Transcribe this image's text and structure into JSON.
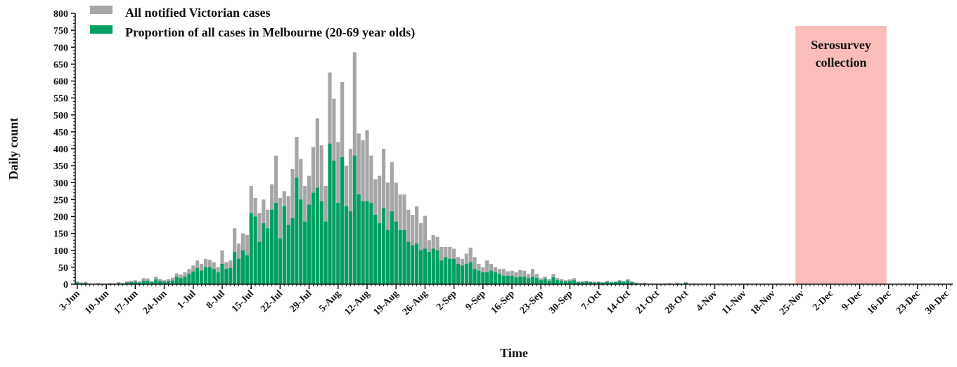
{
  "chart_data": {
    "type": "bar",
    "stacked": "overlay",
    "x_start_label": "3-Jun",
    "xlabel": "Time",
    "ylabel": "Daily count",
    "ylim": [
      0,
      800
    ],
    "yticks": [
      "0",
      "50",
      "100",
      "150",
      "200",
      "250",
      "300",
      "350",
      "400",
      "450",
      "500",
      "550",
      "600",
      "650",
      "700",
      "750",
      "800"
    ],
    "xtick_labels": [
      "3-Jun",
      "10-Jun",
      "17-Jun",
      "24-Jun",
      "1-Jul",
      "8-Jul",
      "15-Jul",
      "22-Jul",
      "29-Jul",
      "5-Aug",
      "12-Aug",
      "19-Aug",
      "26-Aug",
      "2-Sep",
      "9-Sep",
      "16-Sep",
      "23-Sep",
      "30-Sep",
      "7-Oct",
      "14-Oct",
      "21-Oct",
      "28-Oct",
      "4-Nov",
      "11-Nov",
      "18-Nov",
      "25-Nov",
      "2-Dec",
      "9-Dec",
      "16-Dec",
      "23-Dec",
      "30-Dec"
    ],
    "legend": {
      "placement": "top-left",
      "entries": [
        {
          "name": "All notified Victorian cases",
          "color": "#a6a6a8"
        },
        {
          "name": "Proportion of all cases in Melbourne (20-69 year olds)",
          "color": "#00a062"
        }
      ]
    },
    "annotation": {
      "text_lines": [
        "Serosurvey",
        "collection"
      ],
      "from": "24-Nov",
      "to": "16-Dec",
      "color": "#fbbcbc"
    },
    "series": [
      {
        "name": "All notified Victorian cases",
        "color": "#a6a6a8",
        "values": [
          8,
          5,
          7,
          2,
          1,
          3,
          2,
          1,
          3,
          2,
          6,
          4,
          8,
          10,
          12,
          8,
          18,
          17,
          10,
          22,
          15,
          12,
          15,
          19,
          32,
          28,
          35,
          45,
          55,
          70,
          60,
          75,
          72,
          65,
          50,
          100,
          65,
          70,
          165,
          120,
          150,
          145,
          290,
          255,
          210,
          250,
          220,
          295,
          380,
          255,
          275,
          260,
          340,
          435,
          370,
          290,
          320,
          405,
          490,
          410,
          290,
          625,
          548,
          420,
          597,
          350,
          400,
          685,
          445,
          425,
          455,
          380,
          310,
          320,
          400,
          300,
          360,
          300,
          265,
          265,
          220,
          205,
          230,
          180,
          202,
          130,
          145,
          140,
          110,
          110,
          110,
          105,
          80,
          75,
          90,
          108,
          80,
          60,
          50,
          70,
          60,
          50,
          45,
          45,
          38,
          40,
          35,
          42,
          40,
          30,
          45,
          30,
          18,
          22,
          15,
          30,
          18,
          15,
          12,
          14,
          18,
          8,
          8,
          10,
          8,
          7,
          8,
          6,
          10,
          7,
          8,
          12,
          10,
          15,
          8,
          5,
          3,
          4,
          2,
          2,
          1,
          1,
          2,
          3,
          1,
          4,
          2,
          6,
          1,
          2,
          1,
          1,
          1,
          1,
          1,
          1,
          1,
          1,
          1,
          1,
          1,
          1,
          1,
          1,
          1,
          1,
          1,
          1,
          1,
          1,
          1,
          1,
          1,
          1,
          1,
          1,
          1,
          1,
          1,
          1,
          1,
          1,
          1,
          1,
          1,
          1,
          1,
          1,
          1,
          1,
          1,
          1,
          1,
          1,
          1,
          1,
          1,
          1,
          1,
          1,
          1,
          1,
          1,
          1,
          1,
          1,
          1,
          1,
          1,
          1,
          1,
          1,
          1,
          1,
          1,
          1,
          1,
          1,
          1,
          1,
          1,
          1,
          1,
          1,
          1,
          1,
          1,
          1,
          1,
          1,
          1,
          1,
          1,
          1,
          1,
          1,
          1,
          1,
          1,
          1,
          1,
          1,
          3,
          1,
          1,
          1,
          1,
          1,
          1,
          1,
          1,
          1,
          1,
          1,
          1,
          1,
          1,
          1,
          1,
          1,
          1,
          1,
          1,
          1,
          1,
          1,
          6
        ]
      },
      {
        "name": "Proportion of all cases in Melbourne (20-69 year olds)",
        "color": "#00a062",
        "values": [
          5,
          3,
          4,
          1,
          1,
          2,
          1,
          1,
          2,
          1,
          4,
          2,
          5,
          6,
          7,
          5,
          10,
          10,
          6,
          14,
          9,
          7,
          9,
          11,
          22,
          18,
          22,
          30,
          37,
          48,
          40,
          50,
          50,
          45,
          35,
          60,
          45,
          48,
          95,
          75,
          100,
          85,
          210,
          200,
          125,
          180,
          165,
          220,
          240,
          135,
          230,
          175,
          195,
          315,
          250,
          185,
          235,
          270,
          285,
          245,
          185,
          415,
          365,
          240,
          375,
          230,
          215,
          380,
          265,
          245,
          245,
          240,
          205,
          180,
          225,
          160,
          215,
          185,
          160,
          160,
          125,
          115,
          120,
          100,
          105,
          95,
          105,
          100,
          70,
          80,
          75,
          75,
          60,
          55,
          60,
          65,
          45,
          40,
          35,
          35,
          40,
          35,
          30,
          25,
          25,
          25,
          20,
          22,
          22,
          18,
          22,
          18,
          12,
          16,
          10,
          20,
          12,
          10,
          8,
          9,
          12,
          6,
          6,
          8,
          6,
          5,
          6,
          4,
          7,
          5,
          6,
          9,
          7,
          11,
          6,
          3,
          2,
          3,
          1,
          1,
          1,
          1,
          1,
          2,
          1,
          2,
          1,
          4,
          1,
          1,
          1,
          1,
          1,
          1,
          1,
          1,
          1,
          1,
          1,
          1,
          1,
          1,
          1,
          1,
          1,
          1,
          1,
          1,
          1,
          1,
          1,
          1,
          1,
          1,
          1,
          1,
          1,
          1,
          1,
          1,
          1,
          1,
          1,
          1,
          1,
          1,
          1,
          1,
          1,
          1,
          1,
          1,
          1,
          1,
          1,
          1,
          1,
          1,
          1,
          1,
          1,
          1,
          1,
          1,
          1,
          1,
          1,
          1,
          1,
          1,
          1,
          1,
          1,
          1,
          1,
          1,
          1,
          1,
          1,
          1,
          1,
          1,
          1,
          1,
          1,
          1,
          1,
          1,
          1,
          1,
          1,
          1,
          1,
          1,
          1,
          1,
          1,
          1,
          1,
          1,
          1,
          2,
          1,
          1,
          1,
          1,
          1,
          1,
          1,
          1,
          1,
          1,
          1,
          1,
          1,
          1,
          1,
          1,
          1,
          1,
          1,
          1,
          1,
          1,
          1,
          4
        ]
      }
    ]
  }
}
